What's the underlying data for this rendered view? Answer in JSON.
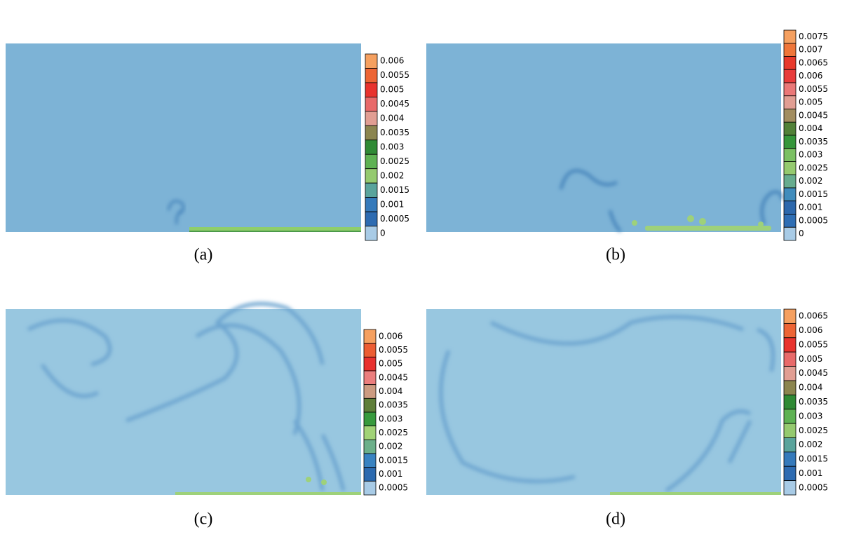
{
  "panels": [
    {
      "label": "(a)",
      "colorbar": [
        "0.006",
        "0.0055",
        "0.005",
        "0.0045",
        "0.004",
        "0.0035",
        "0.003",
        "0.0025",
        "0.002",
        "0.0015",
        "0.001",
        "0.0005",
        "0"
      ]
    },
    {
      "label": "(b)",
      "colorbar": [
        "0.0075",
        "0.007",
        "0.0065",
        "0.006",
        "0.0055",
        "0.005",
        "0.0045",
        "0.004",
        "0.0035",
        "0.003",
        "0.0025",
        "0.002",
        "0.0015",
        "0.001",
        "0.0005",
        "0"
      ]
    },
    {
      "label": "(c)",
      "colorbar": [
        "0.006",
        "0.0055",
        "0.005",
        "0.0045",
        "0.004",
        "0.0035",
        "0.003",
        "0.0025",
        "0.002",
        "0.0015",
        "0.001",
        "0.0005"
      ]
    },
    {
      "label": "(d)",
      "colorbar": [
        "0.0065",
        "0.006",
        "0.0055",
        "0.005",
        "0.0045",
        "0.004",
        "0.0035",
        "0.003",
        "0.0025",
        "0.002",
        "0.0015",
        "0.001",
        "0.0005"
      ]
    }
  ]
}
